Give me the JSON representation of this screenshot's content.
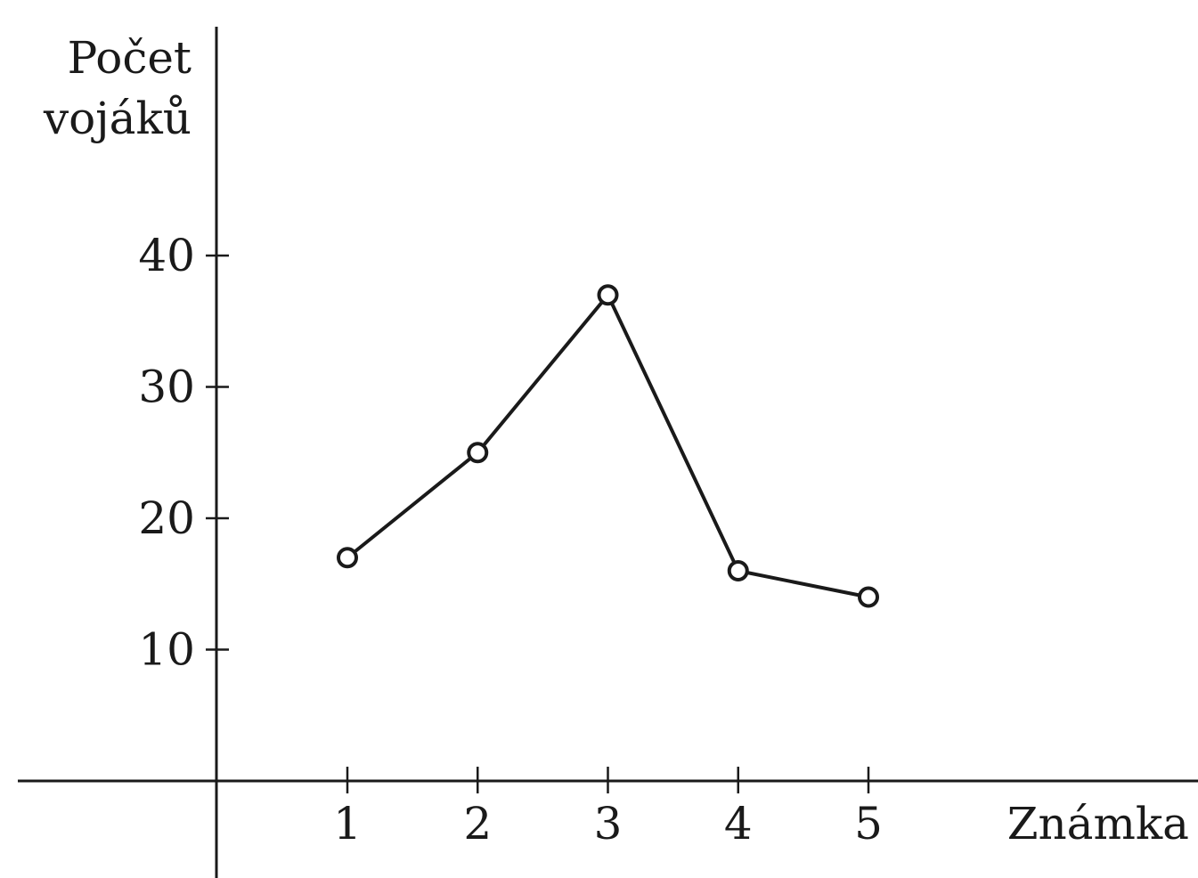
{
  "chart_data": {
    "type": "line",
    "title": "",
    "ylabel_lines": [
      "Počet",
      "vojáků"
    ],
    "xlabel": "Známka",
    "x": [
      1,
      2,
      3,
      4,
      5
    ],
    "xticks": [
      "1",
      "2",
      "3",
      "4",
      "5"
    ],
    "yticks": [
      "10",
      "20",
      "30",
      "40"
    ],
    "yticks_values": [
      10,
      20,
      30,
      40
    ],
    "series": [
      {
        "values": [
          17,
          25,
          37,
          16,
          14
        ]
      }
    ],
    "ylim": [
      0,
      40
    ],
    "grid": false,
    "legend": "none",
    "colors": {
      "ink": "#1a1a1a",
      "marker_fill": "#ffffff"
    }
  }
}
